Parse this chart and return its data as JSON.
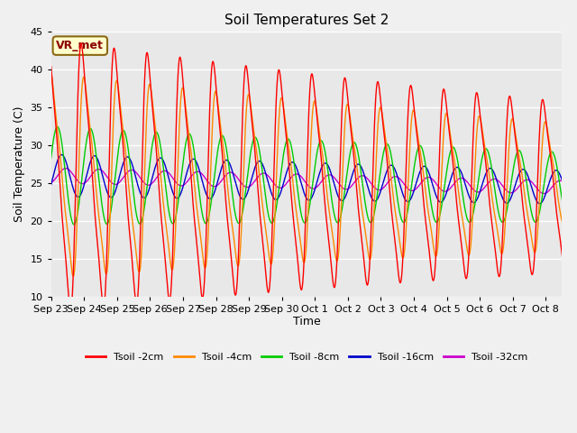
{
  "title": "Soil Temperatures Set 2",
  "xlabel": "Time",
  "ylabel": "Soil Temperature (C)",
  "ylim": [
    10,
    45
  ],
  "yticks": [
    10,
    15,
    20,
    25,
    30,
    35,
    40,
    45
  ],
  "bg_color": "#e8e8e8",
  "fig_color": "#f0f0f0",
  "grid_color": "white",
  "annotation_text": "VR_met",
  "annotation_bg": "#ffffcc",
  "annotation_border": "#8b6914",
  "colors": {
    "Tsoil -2cm": "#ff0000",
    "Tsoil -4cm": "#ff8800",
    "Tsoil -8cm": "#00cc00",
    "Tsoil -16cm": "#0000cc",
    "Tsoil -32cm": "#cc00cc"
  },
  "xtick_labels": [
    "Sep 23",
    "Sep 24",
    "Sep 25",
    "Sep 26",
    "Sep 27",
    "Sep 28",
    "Sep 29",
    "Sep 30",
    "Oct 1",
    "Oct 2",
    "Oct 3",
    "Oct 4",
    "Oct 5",
    "Oct 6",
    "Oct 7",
    "Oct 8"
  ],
  "n_days": 15.5,
  "points_per_day": 96
}
